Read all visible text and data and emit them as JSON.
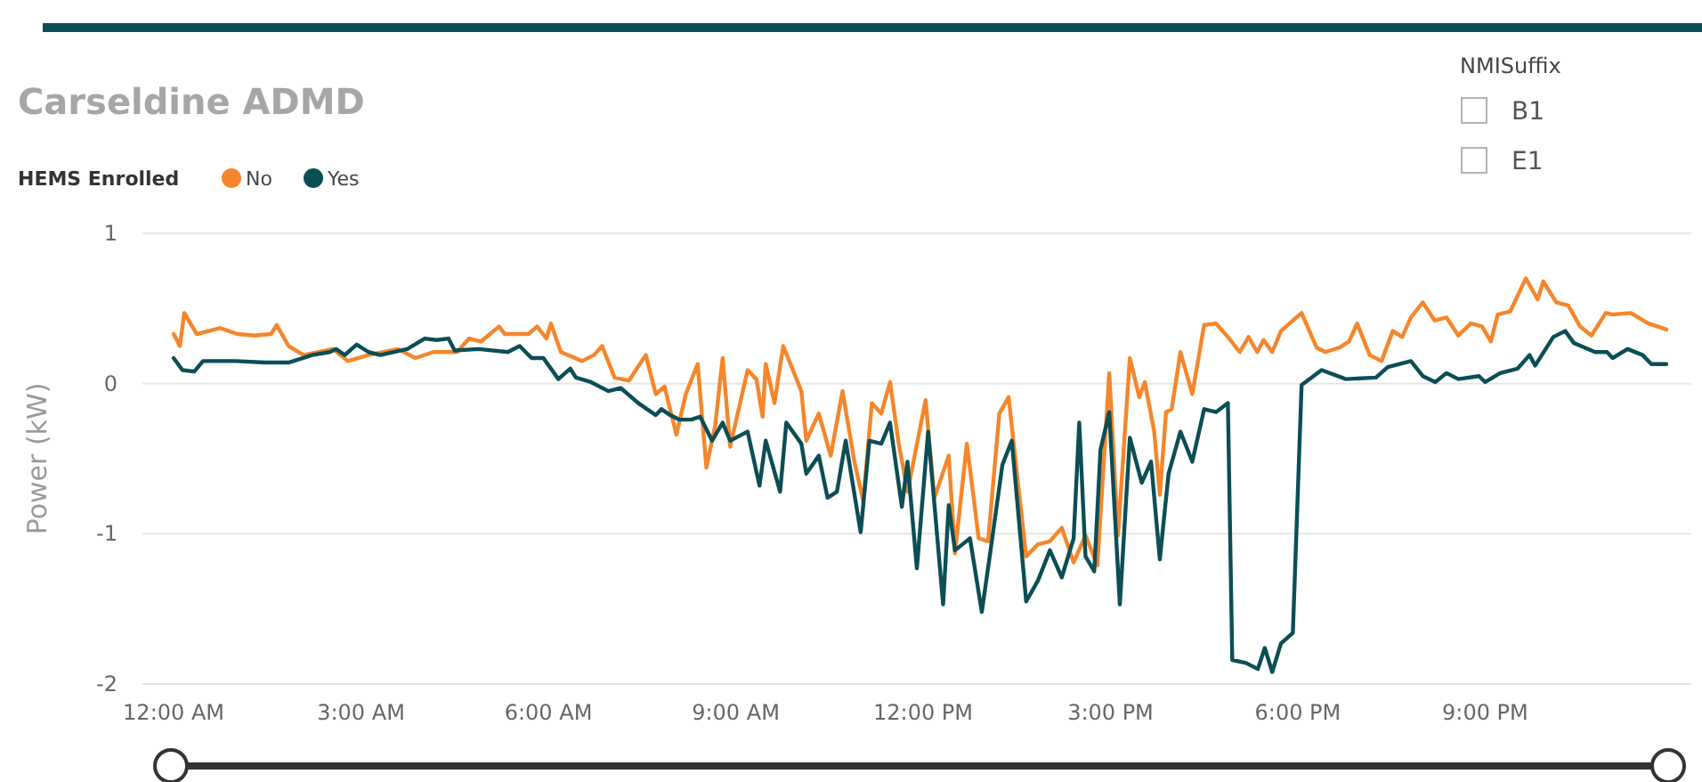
{
  "chart_data": {
    "type": "line",
    "title": "Carseldine ADMD",
    "ylabel": "Power (kW)",
    "legend_title": "HEMS Enrolled",
    "legend": "top left",
    "grid": "y",
    "marker": "none",
    "line_style": "solid",
    "xlim": [
      -0.5,
      24.3
    ],
    "ylim": [
      -2,
      1
    ],
    "xticks": [
      {
        "value": 0,
        "label": "12:00 AM"
      },
      {
        "value": 3,
        "label": "3:00 AM"
      },
      {
        "value": 6,
        "label": "6:00 AM"
      },
      {
        "value": 9,
        "label": "9:00 AM"
      },
      {
        "value": 12,
        "label": "12:00 PM"
      },
      {
        "value": 15,
        "label": "3:00 PM"
      },
      {
        "value": 18,
        "label": "6:00 PM"
      },
      {
        "value": 21,
        "label": "9:00 PM"
      }
    ],
    "yticks": [
      -2,
      -1,
      0,
      1
    ],
    "annotations": [
      "NMISuffix",
      "B1",
      "E1"
    ],
    "series": [
      {
        "name": "No",
        "color": "#f5862b",
        "x": [
          0,
          0.1,
          0.17,
          0.37,
          0.74,
          1.02,
          1.3,
          1.56,
          1.65,
          1.84,
          2.08,
          2.55,
          2.79,
          3.12,
          3.59,
          3.87,
          4.16,
          4.54,
          4.73,
          4.92,
          5.21,
          5.3,
          5.68,
          5.82,
          5.97,
          6.04,
          6.2,
          6.54,
          6.73,
          6.86,
          7.06,
          7.29,
          7.56,
          7.72,
          7.86,
          8.05,
          8.2,
          8.39,
          8.53,
          8.67,
          8.79,
          8.91,
          9.19,
          9.33,
          9.43,
          9.48,
          9.62,
          9.76,
          10.05,
          10.13,
          10.33,
          10.52,
          10.71,
          10.9,
          11.04,
          11.18,
          11.33,
          11.47,
          11.61,
          11.75,
          12.04,
          12.18,
          12.41,
          12.51,
          12.7,
          12.89,
          13.04,
          13.22,
          13.37,
          13.46,
          13.65,
          13.84,
          14.03,
          14.22,
          14.41,
          14.6,
          14.79,
          14.98,
          15.12,
          15.31,
          15.46,
          15.55,
          15.7,
          15.79,
          15.89,
          15.98,
          16.12,
          16.31,
          16.5,
          16.69,
          16.88,
          17.07,
          17.21,
          17.35,
          17.45,
          17.59,
          17.73,
          17.92,
          18.06,
          18.3,
          18.44,
          18.67,
          18.82,
          18.95,
          19.15,
          19.34,
          19.52,
          19.67,
          19.81,
          20.0,
          20.19,
          20.38,
          20.57,
          20.77,
          20.95,
          21.09,
          21.2,
          21.4,
          21.65,
          21.84,
          21.93,
          22.14,
          22.33,
          22.52,
          22.7,
          22.93,
          23.04,
          23.33,
          23.61,
          23.9
        ],
        "values": [
          0.33,
          0.25,
          0.47,
          0.33,
          0.37,
          0.33,
          0.32,
          0.33,
          0.39,
          0.25,
          0.19,
          0.23,
          0.15,
          0.19,
          0.23,
          0.17,
          0.21,
          0.21,
          0.3,
          0.28,
          0.38,
          0.33,
          0.33,
          0.38,
          0.3,
          0.4,
          0.21,
          0.15,
          0.19,
          0.25,
          0.04,
          0.02,
          0.19,
          -0.07,
          -0.02,
          -0.34,
          -0.07,
          0.13,
          -0.56,
          -0.28,
          0.17,
          -0.42,
          0.09,
          0.03,
          -0.22,
          0.13,
          -0.13,
          0.25,
          -0.05,
          -0.38,
          -0.2,
          -0.48,
          -0.05,
          -0.52,
          -0.78,
          -0.13,
          -0.2,
          0.01,
          -0.4,
          -0.72,
          -0.11,
          -0.76,
          -0.48,
          -1.13,
          -0.4,
          -1.03,
          -1.05,
          -0.2,
          -0.09,
          -0.44,
          -1.15,
          -1.07,
          -1.05,
          -0.96,
          -1.19,
          -1.01,
          -1.21,
          0.07,
          -1.01,
          0.17,
          -0.09,
          0.01,
          -0.32,
          -0.74,
          -0.19,
          -0.17,
          0.21,
          -0.07,
          0.39,
          0.4,
          0.31,
          0.21,
          0.31,
          0.21,
          0.29,
          0.21,
          0.35,
          0.42,
          0.47,
          0.24,
          0.21,
          0.24,
          0.28,
          0.4,
          0.19,
          0.15,
          0.35,
          0.31,
          0.44,
          0.54,
          0.42,
          0.44,
          0.32,
          0.4,
          0.38,
          0.28,
          0.46,
          0.48,
          0.7,
          0.56,
          0.68,
          0.54,
          0.52,
          0.38,
          0.32,
          0.47,
          0.46,
          0.47,
          0.4,
          0.36
        ]
      },
      {
        "name": "Yes",
        "color": "#0c4e55",
        "x": [
          0,
          0.14,
          0.33,
          0.47,
          0.99,
          1.46,
          1.84,
          2.22,
          2.5,
          2.6,
          2.74,
          2.93,
          3.12,
          3.31,
          3.74,
          4.02,
          4.21,
          4.4,
          4.5,
          4.88,
          5.35,
          5.54,
          5.73,
          5.92,
          6.16,
          6.35,
          6.44,
          6.68,
          6.96,
          7.16,
          7.44,
          7.72,
          7.81,
          7.95,
          8.1,
          8.29,
          8.43,
          8.62,
          8.79,
          8.91,
          9.19,
          9.38,
          9.48,
          9.71,
          9.81,
          10.05,
          10.13,
          10.33,
          10.47,
          10.62,
          10.76,
          11.0,
          11.14,
          11.33,
          11.47,
          11.66,
          11.75,
          11.9,
          12.08,
          12.32,
          12.41,
          12.51,
          12.75,
          12.94,
          13.08,
          13.27,
          13.42,
          13.65,
          13.84,
          14.03,
          14.22,
          14.41,
          14.5,
          14.6,
          14.74,
          14.84,
          14.98,
          15.15,
          15.31,
          15.5,
          15.65,
          15.79,
          15.93,
          16.12,
          16.31,
          16.5,
          16.69,
          16.88,
          16.95,
          17.17,
          17.36,
          17.47,
          17.59,
          17.73,
          17.92,
          18.06,
          18.38,
          18.77,
          19.25,
          19.44,
          19.81,
          20.0,
          20.2,
          20.38,
          20.57,
          20.9,
          21.0,
          21.24,
          21.52,
          21.71,
          21.8,
          22.09,
          22.28,
          22.42,
          22.76,
          22.95,
          23.04,
          23.28,
          23.52,
          23.66,
          23.9
        ],
        "values": [
          0.17,
          0.09,
          0.08,
          0.15,
          0.15,
          0.14,
          0.14,
          0.19,
          0.21,
          0.23,
          0.19,
          0.26,
          0.21,
          0.19,
          0.23,
          0.3,
          0.29,
          0.3,
          0.22,
          0.23,
          0.21,
          0.25,
          0.17,
          0.17,
          0.03,
          0.1,
          0.04,
          0.01,
          -0.05,
          -0.03,
          -0.13,
          -0.21,
          -0.17,
          -0.21,
          -0.24,
          -0.24,
          -0.22,
          -0.38,
          -0.26,
          -0.38,
          -0.32,
          -0.68,
          -0.38,
          -0.72,
          -0.26,
          -0.4,
          -0.6,
          -0.48,
          -0.76,
          -0.72,
          -0.38,
          -0.99,
          -0.38,
          -0.4,
          -0.26,
          -0.82,
          -0.52,
          -1.23,
          -0.32,
          -1.47,
          -0.81,
          -1.11,
          -1.03,
          -1.52,
          -1.11,
          -0.54,
          -0.38,
          -1.45,
          -1.31,
          -1.11,
          -1.29,
          -1.03,
          -0.26,
          -1.15,
          -1.25,
          -0.44,
          -0.19,
          -1.47,
          -0.36,
          -0.66,
          -0.52,
          -1.17,
          -0.6,
          -0.32,
          -0.52,
          -0.17,
          -0.19,
          -0.13,
          -1.84,
          -1.86,
          -1.9,
          -1.76,
          -1.92,
          -1.73,
          -1.66,
          -0.01,
          0.09,
          0.03,
          0.04,
          0.11,
          0.15,
          0.05,
          0.01,
          0.07,
          0.03,
          0.05,
          0.01,
          0.07,
          0.1,
          0.19,
          0.12,
          0.31,
          0.35,
          0.27,
          0.21,
          0.21,
          0.17,
          0.23,
          0.19,
          0.13,
          0.13
        ]
      }
    ]
  }
}
